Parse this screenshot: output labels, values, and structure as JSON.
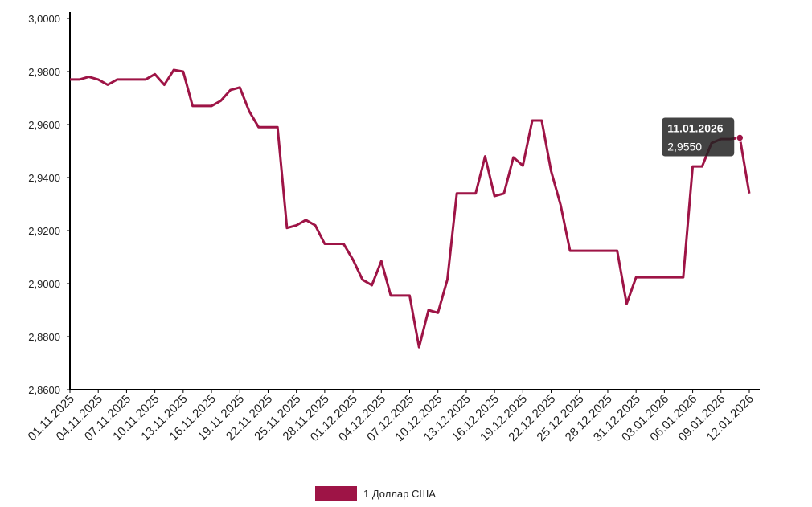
{
  "chart_data": {
    "type": "line",
    "categories": [
      "01.11.2025",
      null,
      null,
      "04.11.2025",
      null,
      null,
      "07.11.2025",
      null,
      null,
      "10.11.2025",
      null,
      null,
      "13.11.2025",
      null,
      null,
      "16.11.2025",
      null,
      null,
      "19.11.2025",
      null,
      null,
      "22.11.2025",
      null,
      null,
      "25.11.2025",
      null,
      null,
      "28.11.2025",
      null,
      null,
      "01.12.2025",
      null,
      null,
      "04.12.2025",
      null,
      null,
      "07.12.2025",
      null,
      null,
      "10.12.2025",
      null,
      null,
      "13.12.2025",
      null,
      null,
      "16.12.2025",
      null,
      null,
      "19.12.2025",
      null,
      null,
      "22.12.2025",
      null,
      null,
      "25.12.2025",
      null,
      null,
      "28.12.2025",
      null,
      null,
      "31.12.2025",
      null,
      null,
      "03.01.2026",
      null,
      null,
      "06.01.2026",
      null,
      null,
      "09.01.2026",
      null,
      null,
      "12.01.2026"
    ],
    "series": [
      {
        "name": "1 Доллар США",
        "color": "#9e1446",
        "values": [
          2.977,
          2.977,
          2.978,
          2.977,
          2.975,
          2.977,
          2.977,
          2.977,
          2.977,
          2.979,
          2.975,
          2.9806,
          2.98,
          2.967,
          2.967,
          2.967,
          2.969,
          2.973,
          2.974,
          2.965,
          2.959,
          2.959,
          2.959,
          2.921,
          2.922,
          2.924,
          2.922,
          2.915,
          2.915,
          2.915,
          2.909,
          2.9015,
          2.8994,
          2.9085,
          2.8955,
          2.8955,
          2.8955,
          2.876,
          2.89,
          2.889,
          2.9015,
          2.934,
          2.934,
          2.934,
          2.948,
          2.933,
          2.934,
          2.9476,
          2.9445,
          2.9615,
          2.9615,
          2.9424,
          2.9297,
          2.9124,
          2.9124,
          2.9124,
          2.9124,
          2.9124,
          2.9124,
          2.8924,
          2.9024,
          2.9024,
          2.9024,
          2.9024,
          2.9024,
          2.9024,
          2.9442,
          2.9442,
          2.953,
          2.9545,
          2.9545,
          2.955,
          2.934
        ]
      }
    ],
    "ylim": [
      2.86,
      3.0
    ],
    "yticks": [
      {
        "value": 2.86,
        "label": "2,8600"
      },
      {
        "value": 2.88,
        "label": "2,8800"
      },
      {
        "value": 2.9,
        "label": "2,9000"
      },
      {
        "value": 2.92,
        "label": "2,9200"
      },
      {
        "value": 2.94,
        "label": "2,9400"
      },
      {
        "value": 2.96,
        "label": "2,9600"
      },
      {
        "value": 2.98,
        "label": "2,9800"
      },
      {
        "value": 3.0,
        "label": "3,0000"
      }
    ],
    "grid": false,
    "legend": "bottom",
    "tooltip": {
      "x": "11.01.2026",
      "value": 2.955,
      "label": "2,9550"
    }
  }
}
